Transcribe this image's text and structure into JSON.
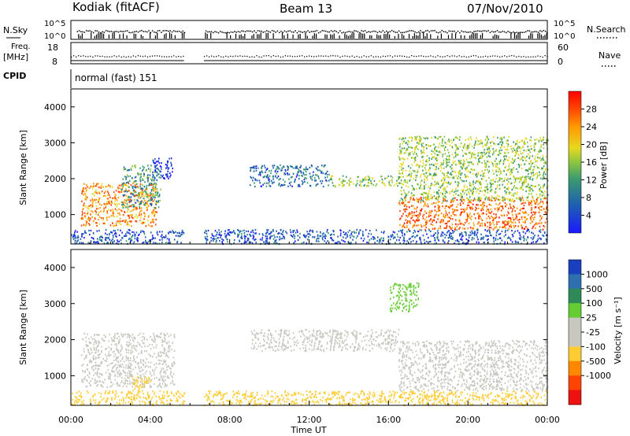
{
  "header": {
    "station": "Kodiak (fitACF)",
    "beam": "Beam 13",
    "date": "07/Nov/2010"
  },
  "status_panels": {
    "nsky_label": "N.Sky",
    "nsearch_label": "N.Search",
    "noise_ticks": [
      "10^5",
      "10^0"
    ],
    "freq_label_1": "Freq.",
    "freq_label_2": "[MHz]",
    "freq_ticks": [
      "18",
      "8"
    ],
    "nave_label": "Nave",
    "nave_ticks": [
      "60",
      "0"
    ],
    "cpid_label": "CPID",
    "cpid_text": "normal (fast) 151"
  },
  "axes": {
    "ylabel": "Slant Range [km]",
    "xlabel": "Time UT",
    "x_ticks": [
      "00:00",
      "04:00",
      "08:00",
      "12:00",
      "16:00",
      "20:00",
      "00:00"
    ],
    "y_ticks": [
      "1000",
      "2000",
      "3000",
      "4000"
    ]
  },
  "colorbars": {
    "power_label": "Power [dB]",
    "power_ticks": [
      "4",
      "8",
      "12",
      "16",
      "20",
      "24",
      "28"
    ],
    "velocity_label": "Velocity [m s⁻¹]",
    "velocity_ticks": [
      "1000",
      "500",
      "100",
      "25",
      "-25",
      "-100",
      "-500",
      "-1000"
    ]
  },
  "chart_data": [
    {
      "type": "heatmap",
      "title": "Power",
      "xlabel": "Time UT",
      "ylabel": "Slant Range [km]",
      "xlim": [
        0,
        24
      ],
      "ylim": [
        180,
        4500
      ],
      "colorbar": {
        "label": "Power [dB]",
        "range": [
          0,
          32
        ],
        "ticks": [
          4,
          8,
          12,
          16,
          20,
          24,
          28
        ]
      },
      "grid": false,
      "data_gaps_hours": [
        [
          5.7,
          6.7
        ]
      ],
      "regions": [
        {
          "t": [
            0.5,
            4.3
          ],
          "range_km": [
            700,
            1900
          ],
          "value_db": 26
        },
        {
          "t": [
            2.5,
            4.5
          ],
          "range_km": [
            1200,
            2400
          ],
          "value_db": 14
        },
        {
          "t": [
            4.1,
            5.1
          ],
          "range_km": [
            2000,
            2600
          ],
          "value_db": 6
        },
        {
          "t": [
            9.0,
            13.0
          ],
          "range_km": [
            1800,
            2400
          ],
          "value_db": 10
        },
        {
          "t": [
            13.0,
            16.5
          ],
          "range_km": [
            1800,
            2100
          ],
          "value_db": 18
        },
        {
          "t": [
            16.5,
            24.0
          ],
          "range_km": [
            600,
            1500
          ],
          "value_db": 28
        },
        {
          "t": [
            16.5,
            24.0
          ],
          "range_km": [
            1400,
            3200
          ],
          "value_db": 18
        },
        {
          "t": [
            0.0,
            24.0
          ],
          "range_km": [
            200,
            600
          ],
          "value_db": 8
        }
      ]
    },
    {
      "type": "heatmap",
      "title": "Velocity",
      "xlabel": "Time UT",
      "ylabel": "Slant Range [km]",
      "xlim": [
        0,
        24
      ],
      "ylim": [
        180,
        4500
      ],
      "colorbar": {
        "label": "Velocity [m s⁻¹]",
        "ticks": [
          1000,
          500,
          100,
          25,
          -25,
          -100,
          -500,
          -1000
        ]
      },
      "grid": false,
      "data_gaps_hours": [
        [
          5.7,
          6.7
        ]
      ],
      "regions": [
        {
          "t": [
            0.5,
            5.2
          ],
          "range_km": [
            700,
            2200
          ],
          "value_ms": 0
        },
        {
          "t": [
            3.0,
            4.0
          ],
          "range_km": [
            600,
            1000
          ],
          "value_ms": -60
        },
        {
          "t": [
            9.0,
            16.5
          ],
          "range_km": [
            1700,
            2300
          ],
          "value_ms": 0
        },
        {
          "t": [
            16.5,
            24.0
          ],
          "range_km": [
            600,
            2000
          ],
          "value_ms": 0
        },
        {
          "t": [
            16.0,
            17.5
          ],
          "range_km": [
            2800,
            3600
          ],
          "value_ms": 80
        },
        {
          "t": [
            0.0,
            24.0
          ],
          "range_km": [
            200,
            600
          ],
          "value_ms": -50
        }
      ]
    }
  ]
}
